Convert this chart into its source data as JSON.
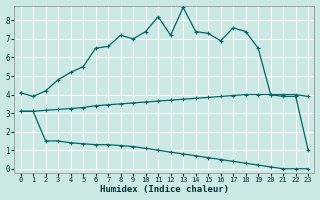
{
  "xlabel": "Humidex (Indice chaleur)",
  "bg_color": "#cce8e4",
  "grid_color": "#b0d8d4",
  "line_color": "#006666",
  "x_ticks": [
    0,
    1,
    2,
    3,
    4,
    5,
    6,
    7,
    8,
    9,
    10,
    11,
    12,
    13,
    14,
    15,
    16,
    17,
    18,
    19,
    20,
    21,
    22,
    23
  ],
  "y_ticks": [
    0,
    1,
    2,
    3,
    4,
    5,
    6,
    7,
    8
  ],
  "ylim": [
    -0.2,
    8.8
  ],
  "xlim": [
    -0.5,
    23.5
  ],
  "curve1_x": [
    0,
    1,
    2,
    3,
    4,
    5,
    6,
    7,
    8,
    9,
    10,
    11,
    12,
    13,
    14,
    15,
    16,
    17,
    18,
    19,
    20,
    21,
    22,
    23
  ],
  "curve1_y": [
    4.1,
    3.9,
    4.2,
    4.8,
    5.2,
    5.5,
    6.5,
    6.6,
    7.2,
    7.0,
    7.4,
    8.2,
    7.2,
    8.7,
    7.4,
    7.3,
    6.9,
    7.6,
    7.4,
    6.5,
    4.0,
    3.9,
    3.9,
    1.0
  ],
  "curve2_x": [
    0,
    1,
    2,
    3,
    4,
    5,
    6,
    7,
    8,
    9,
    10,
    11,
    12,
    13,
    14,
    15,
    16,
    17,
    18,
    19,
    20,
    21,
    22,
    23
  ],
  "curve2_y": [
    3.1,
    3.1,
    3.15,
    3.2,
    3.25,
    3.3,
    3.4,
    3.45,
    3.5,
    3.55,
    3.6,
    3.65,
    3.7,
    3.75,
    3.8,
    3.85,
    3.9,
    3.95,
    4.0,
    4.0,
    4.0,
    4.0,
    4.0,
    3.9
  ],
  "curve3_x": [
    0,
    1,
    2,
    3,
    4,
    5,
    6,
    7,
    8,
    9,
    10,
    11,
    12,
    13,
    14,
    15,
    16,
    17,
    18,
    19,
    20,
    21,
    22,
    23
  ],
  "curve3_y": [
    3.1,
    3.1,
    1.5,
    1.5,
    1.4,
    1.35,
    1.3,
    1.3,
    1.25,
    1.2,
    1.1,
    1.0,
    0.9,
    0.8,
    0.7,
    0.6,
    0.5,
    0.4,
    0.3,
    0.2,
    0.1,
    0.0,
    0.0,
    0.0
  ]
}
